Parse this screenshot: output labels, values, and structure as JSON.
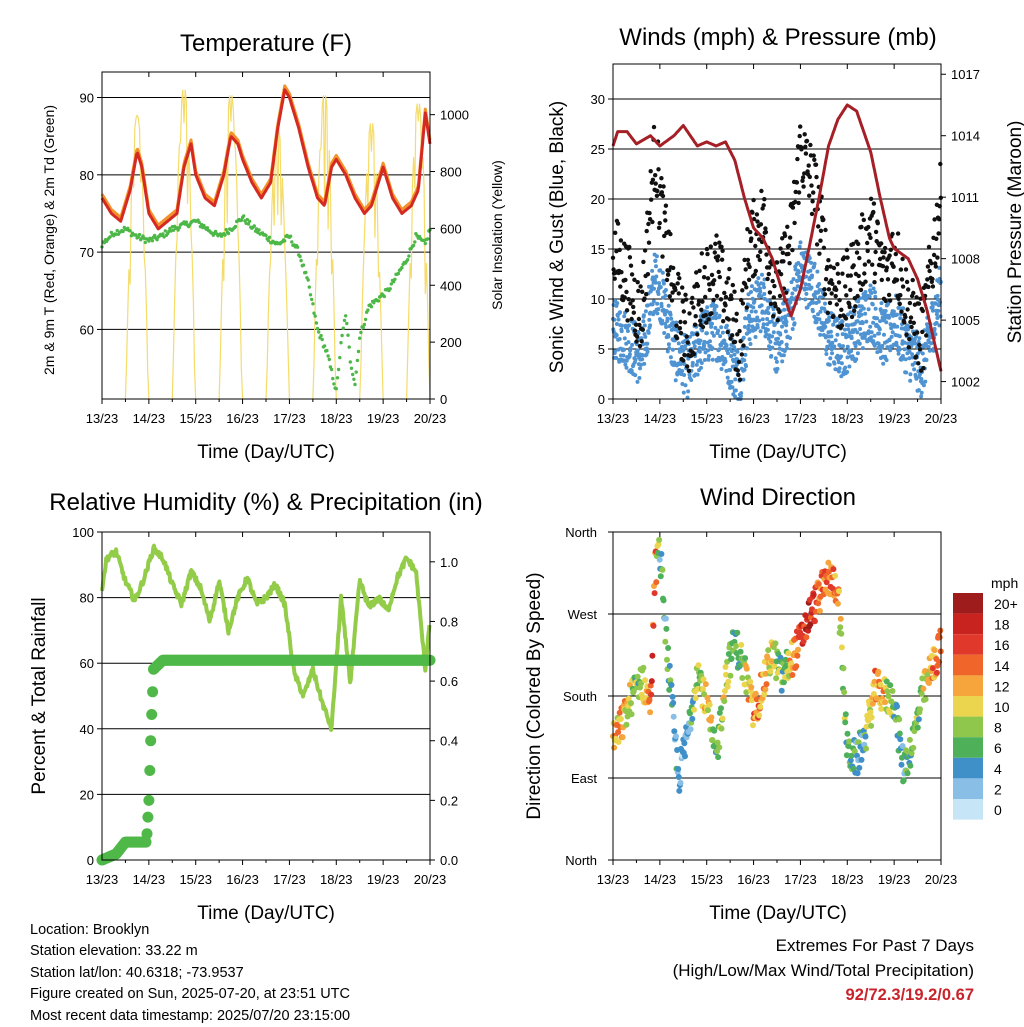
{
  "x_ticks": [
    "13/23",
    "14/23",
    "15/23",
    "16/23",
    "17/23",
    "18/23",
    "19/23",
    "20/23"
  ],
  "chart_data": [
    {
      "type": "line",
      "title": "Temperature (F)",
      "xlabel": "Time (Day/UTC)",
      "ylabel": "2m & 9m T (Red, Orange) & 2m Td (Green)",
      "y2label": "Solar Insolation (Yellow)",
      "ylim": [
        51,
        93.3
      ],
      "yticks": [
        60,
        70,
        80,
        90
      ],
      "y2lim": [
        0,
        1150
      ],
      "y2ticks": [
        0,
        200,
        400,
        600,
        800,
        1000
      ],
      "grid": true,
      "colors": {
        "t2m": "#d42a22",
        "t9m": "#f3922a",
        "td": "#4db848",
        "solar": "#f5dc6a"
      },
      "series": [
        {
          "key": "t2m",
          "x": [
            13.0,
            13.2,
            13.4,
            13.6,
            13.75,
            13.85,
            14.0,
            14.2,
            14.4,
            14.6,
            14.75,
            14.9,
            15.0,
            15.2,
            15.4,
            15.6,
            15.75,
            15.9,
            16.0,
            16.2,
            16.4,
            16.6,
            16.75,
            16.9,
            17.0,
            17.2,
            17.4,
            17.6,
            17.75,
            17.9,
            18.0,
            18.2,
            18.4,
            18.6,
            18.75,
            18.9,
            19.0,
            19.2,
            19.4,
            19.6,
            19.75,
            19.9,
            20.0
          ],
          "y": [
            77,
            75,
            74,
            78,
            83,
            81,
            75,
            73,
            74,
            75,
            81,
            84,
            80,
            77,
            76,
            80,
            85,
            84,
            82,
            79,
            77,
            79,
            86,
            91,
            90,
            86,
            81,
            77,
            76,
            81,
            82,
            80,
            77,
            75,
            76,
            79,
            81,
            77,
            75,
            76,
            78,
            88,
            84
          ]
        },
        {
          "key": "td",
          "x": [
            13.0,
            13.25,
            13.5,
            13.75,
            14.0,
            14.25,
            14.5,
            14.75,
            15.0,
            15.25,
            15.5,
            15.75,
            16.0,
            16.25,
            16.5,
            16.75,
            17.0,
            17.2,
            17.4,
            17.6,
            17.8,
            18.0,
            18.1,
            18.2,
            18.3,
            18.4,
            18.5,
            18.7,
            18.9,
            19.1,
            19.3,
            19.5,
            19.7,
            19.9,
            20.0
          ],
          "y": [
            71,
            72.5,
            73,
            72,
            71.5,
            72,
            73,
            73.5,
            74,
            73,
            72,
            73,
            74.5,
            73,
            72,
            71,
            72,
            70,
            66,
            60,
            57,
            52,
            58,
            62,
            56,
            53,
            59,
            63,
            64,
            65,
            67,
            69,
            72,
            71,
            73
          ]
        },
        {
          "key": "solar",
          "peak_hours_utc": 17,
          "peak_wm2": [
            1000,
            1100,
            1080,
            960,
            1080,
            980,
            1050,
            900
          ]
        }
      ]
    },
    {
      "type": "scatter",
      "title": "Winds (mph) & Pressure (mb)",
      "xlabel": "Time (Day/UTC)",
      "ylabel": "Sonic Wind & Gust (Blue, Black)",
      "y2label": "Station Pressure (Maroon)",
      "ylim": [
        0,
        33.5
      ],
      "yticks": [
        0,
        5,
        10,
        15,
        20,
        25,
        30
      ],
      "y2lim": [
        1001.15,
        1017.5
      ],
      "y2ticks": [
        1002,
        1005,
        1008,
        1011,
        1014,
        1017
      ],
      "grid": true,
      "colors": {
        "wind": "#4f93d2",
        "gust": "#111111",
        "pressure": "#a52026"
      },
      "series": [
        {
          "key": "wind",
          "x": [
            13.0,
            13.3,
            13.6,
            13.9,
            14.0,
            14.3,
            14.6,
            14.9,
            15.2,
            15.5,
            15.7,
            15.9,
            16.2,
            16.5,
            16.8,
            17.0,
            17.3,
            17.6,
            17.9,
            18.2,
            18.5,
            18.8,
            19.0,
            19.3,
            19.6,
            19.9,
            20.0
          ],
          "y": [
            7,
            6,
            4,
            12,
            11,
            5,
            3,
            6,
            7,
            4,
            2,
            8,
            10,
            5,
            9,
            13,
            11,
            6,
            5,
            7,
            9,
            6,
            8,
            5,
            3,
            9,
            11
          ]
        },
        {
          "key": "gust",
          "x": [
            13.0,
            13.3,
            13.6,
            13.9,
            14.0,
            14.3,
            14.6,
            14.9,
            15.2,
            15.5,
            15.7,
            15.9,
            16.2,
            16.5,
            16.8,
            17.0,
            17.3,
            17.6,
            17.9,
            18.2,
            18.5,
            18.8,
            19.0,
            19.3,
            19.6,
            19.9,
            20.0
          ],
          "y": [
            15,
            12,
            8,
            25,
            20,
            10,
            6,
            11,
            13,
            9,
            5,
            15,
            18,
            10,
            16,
            25,
            21,
            12,
            10,
            13,
            17,
            12,
            15,
            9,
            6,
            17,
            20
          ]
        },
        {
          "key": "pressure",
          "x": [
            13.0,
            13.1,
            13.3,
            13.5,
            13.8,
            14.0,
            14.3,
            14.5,
            14.8,
            15.0,
            15.2,
            15.4,
            15.6,
            15.8,
            16.0,
            16.2,
            16.4,
            16.6,
            16.8,
            17.0,
            17.2,
            17.4,
            17.6,
            17.8,
            18.0,
            18.2,
            18.5,
            18.7,
            18.9,
            19.0,
            19.3,
            19.5,
            19.7,
            19.9,
            20.0
          ],
          "y": [
            1013.5,
            1014.2,
            1014.2,
            1013.6,
            1014.0,
            1013.5,
            1014.0,
            1014.5,
            1013.5,
            1013.7,
            1013.5,
            1013.7,
            1012.8,
            1011.0,
            1009.5,
            1009.0,
            1008.0,
            1006.5,
            1005.2,
            1006.5,
            1008.7,
            1011.0,
            1013.5,
            1014.8,
            1015.5,
            1015.2,
            1013.2,
            1011.0,
            1009.0,
            1008.5,
            1008.0,
            1007.0,
            1005.5,
            1003.5,
            1002.5
          ]
        }
      ]
    },
    {
      "type": "line",
      "title": "Relative Humidity (%) & Precipitation (in)",
      "xlabel": "Time (Day/UTC)",
      "ylabel": "Percent & Total Rainfall",
      "ylim": [
        0,
        100
      ],
      "yticks": [
        0,
        20,
        40,
        60,
        80,
        100
      ],
      "y2lim": [
        0,
        1.1
      ],
      "y2ticks": [
        "0.0",
        "0.2",
        "0.4",
        "0.6",
        "0.8",
        "1.0"
      ],
      "grid": true,
      "colors": {
        "rh": "#92cc48",
        "precip": "#4fb848"
      },
      "series": [
        {
          "key": "rh",
          "x": [
            13.0,
            13.1,
            13.3,
            13.5,
            13.7,
            13.9,
            14.1,
            14.3,
            14.5,
            14.7,
            14.9,
            15.1,
            15.3,
            15.5,
            15.7,
            15.9,
            16.1,
            16.3,
            16.5,
            16.7,
            16.9,
            17.1,
            17.3,
            17.5,
            17.7,
            17.9,
            18.1,
            18.3,
            18.5,
            18.7,
            18.9,
            19.1,
            19.3,
            19.5,
            19.7,
            19.9,
            20.0
          ],
          "y": [
            83,
            92,
            94,
            85,
            79,
            86,
            95,
            92,
            84,
            78,
            88,
            83,
            73,
            85,
            70,
            80,
            86,
            78,
            80,
            84,
            78,
            57,
            50,
            58,
            48,
            40,
            80,
            54,
            85,
            77,
            80,
            76,
            86,
            92,
            88,
            58,
            74
          ]
        },
        {
          "key": "precip",
          "x": [
            13.0,
            13.3,
            13.5,
            13.7,
            13.85,
            13.95,
            14.0,
            14.05,
            14.1,
            14.3,
            14.6,
            15.0,
            20.0
          ],
          "y": [
            0.0,
            0.02,
            0.06,
            0.06,
            0.06,
            0.06,
            0.2,
            0.45,
            0.64,
            0.67,
            0.67,
            0.67,
            0.67
          ]
        }
      ]
    },
    {
      "type": "scatter",
      "title": "Wind Direction",
      "xlabel": "Time (Day/UTC)",
      "ylabel": "Direction (Colored By Speed)",
      "ylim": [
        0,
        360
      ],
      "ytick_labels": [
        "North",
        "East",
        "South",
        "West",
        "North"
      ],
      "grid": true,
      "legend": {
        "title": "mph",
        "labels": [
          "20+",
          "18",
          "16",
          "14",
          "12",
          "10",
          "8",
          "6",
          "4",
          "2",
          "0"
        ],
        "colors": [
          "#9e1c1c",
          "#c8231f",
          "#e0392b",
          "#f0662a",
          "#f6a43c",
          "#ebd54e",
          "#8fc74c",
          "#4fb05a",
          "#3f8fc8",
          "#89bfe6",
          "#c6e6f7"
        ],
        "placement": "right"
      },
      "series": [
        {
          "key": "direction",
          "x": [
            13.0,
            13.2,
            13.4,
            13.6,
            13.8,
            13.9,
            14.0,
            14.2,
            14.4,
            14.6,
            14.8,
            15.0,
            15.2,
            15.4,
            15.6,
            15.8,
            16.0,
            16.2,
            16.4,
            16.6,
            16.8,
            17.0,
            17.2,
            17.4,
            17.6,
            17.8,
            18.0,
            18.2,
            18.4,
            18.6,
            18.8,
            19.0,
            19.2,
            19.4,
            19.6,
            19.8,
            20.0
          ],
          "y": [
            130,
            150,
            180,
            200,
            170,
            320,
            340,
            200,
            90,
            140,
            210,
            170,
            110,
            200,
            240,
            210,
            160,
            190,
            230,
            200,
            220,
            240,
            270,
            290,
            310,
            300,
            120,
            110,
            140,
            190,
            180,
            175,
            100,
            130,
            180,
            210,
            235
          ],
          "speed": [
            10,
            12,
            8,
            6,
            16,
            14,
            4,
            6,
            2,
            4,
            8,
            12,
            6,
            10,
            4,
            8,
            14,
            12,
            10,
            6,
            12,
            16,
            18,
            14,
            14,
            12,
            6,
            4,
            6,
            14,
            10,
            6,
            4,
            6,
            8,
            12,
            16
          ]
        }
      ]
    }
  ],
  "info": {
    "location": "Location: Brooklyn",
    "elevation": "Station elevation: 33.22 m",
    "latlon": "Station lat/lon: 40.6318; -73.9537",
    "created": "Figure created on Sun, 2025-07-20, at 23:51 UTC",
    "latest": "Most recent data timestamp: 2025/07/20 23:15:00"
  },
  "extremes": {
    "heading": "Extremes For Past 7 Days",
    "subheading": "(High/Low/Max Wind/Total Precipitation)",
    "values": "92/72.3/19.2/0.67"
  }
}
